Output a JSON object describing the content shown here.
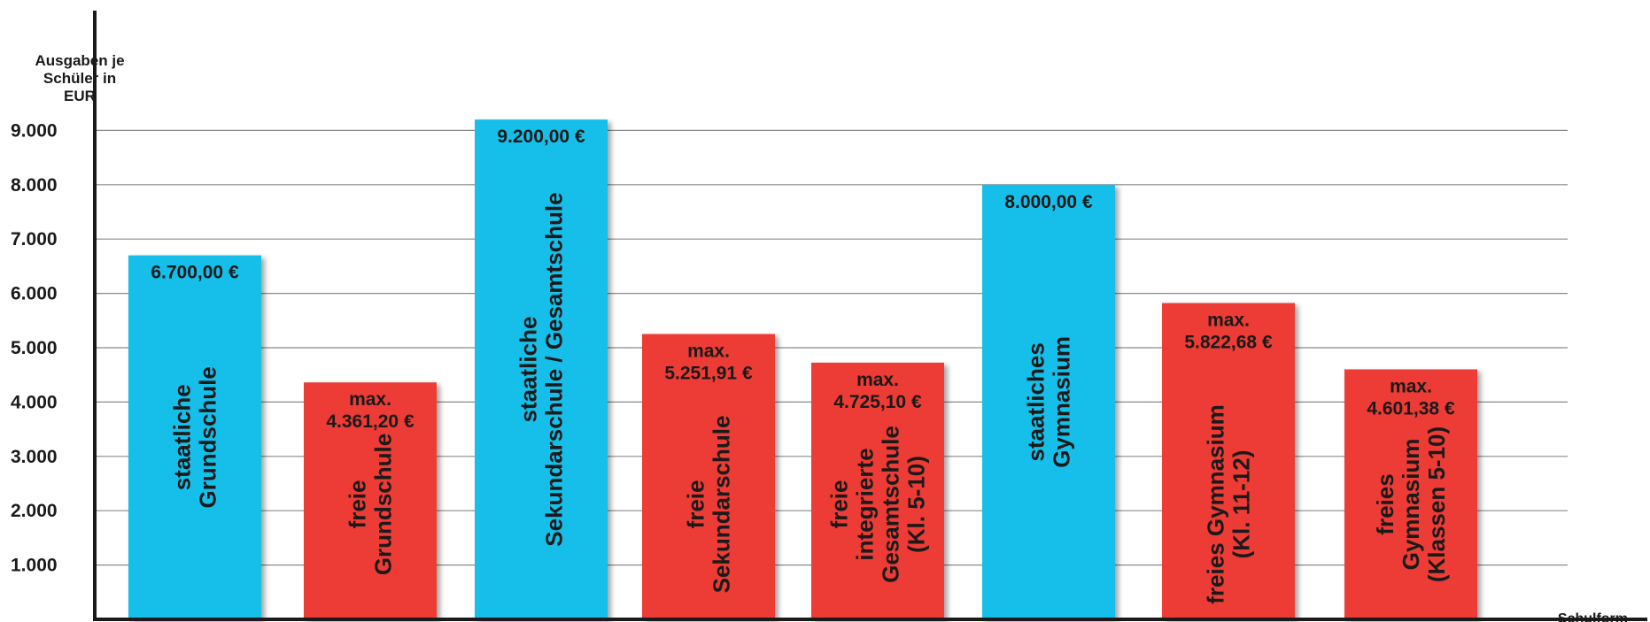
{
  "chart_data": {
    "type": "bar",
    "ylabel": [
      "Ausgaben je",
      "Schüler in",
      "EUR"
    ],
    "xlabel": "Schulform",
    "ylim": [
      0,
      9500
    ],
    "yticks": [
      {
        "value": 1000,
        "label": "1.000"
      },
      {
        "value": 2000,
        "label": "2.000"
      },
      {
        "value": 3000,
        "label": "3.000"
      },
      {
        "value": 4000,
        "label": "4.000"
      },
      {
        "value": 5000,
        "label": "5.000"
      },
      {
        "value": 6000,
        "label": "6.000"
      },
      {
        "value": 7000,
        "label": "7.000"
      },
      {
        "value": 8000,
        "label": "8.000"
      },
      {
        "value": 9000,
        "label": "9.000"
      }
    ],
    "grid": true,
    "colors": {
      "staatlich": "#13bfe9",
      "frei": "#ed3b35"
    },
    "bars": [
      {
        "category": [
          "staatliche",
          "Grundschule"
        ],
        "value": 6700,
        "value_label": [
          "6.700,00 €"
        ],
        "kind": "staatlich"
      },
      {
        "category": [
          "freie",
          "Grundschule"
        ],
        "value": 4361.2,
        "value_label": [
          "max.",
          "4.361,20 €"
        ],
        "kind": "frei"
      },
      {
        "category": [
          "staatliche",
          "Sekundarschule / Gesamtschule"
        ],
        "value": 9200,
        "value_label": [
          "9.200,00 €"
        ],
        "kind": "staatlich"
      },
      {
        "category": [
          "freie",
          "Sekundarschule"
        ],
        "value": 5251.91,
        "value_label": [
          "max.",
          "5.251,91 €"
        ],
        "kind": "frei"
      },
      {
        "category": [
          "freie",
          "integrierte",
          "Gesamtschule",
          "(Kl. 5-10)"
        ],
        "value": 4725.1,
        "value_label": [
          "max.",
          "4.725,10 €"
        ],
        "kind": "frei"
      },
      {
        "category": [
          "staatliches",
          "Gymnasium"
        ],
        "value": 8000,
        "value_label": [
          "8.000,00 €"
        ],
        "kind": "staatlich"
      },
      {
        "category": [
          "freies Gymnasium",
          "(Kl. 11-12)"
        ],
        "value": 5822.68,
        "value_label": [
          "max.",
          "5.822,68 €"
        ],
        "kind": "frei"
      },
      {
        "category": [
          "freies",
          "Gymnasium",
          "(Klassen 5-10)"
        ],
        "value": 4601.38,
        "value_label": [
          "max.",
          "4.601,38 €"
        ],
        "kind": "frei"
      }
    ]
  }
}
